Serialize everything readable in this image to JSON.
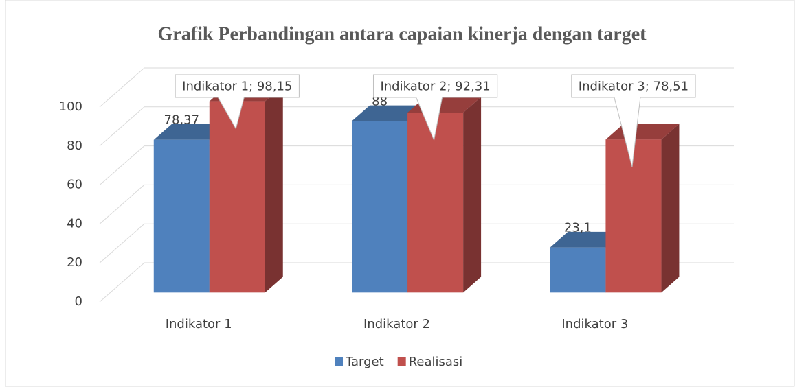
{
  "chart_data": {
    "type": "bar3d",
    "title": "Grafik Perbandingan antara capaian kinerja dengan target",
    "categories": [
      "Indikator 1",
      "Indikator 2",
      "Indikator 3"
    ],
    "series": [
      {
        "name": "Target",
        "color": "#4f81bd",
        "values": [
          78.37,
          88,
          23.1
        ],
        "value_labels": [
          "78,37",
          "88",
          "23,1"
        ]
      },
      {
        "name": "Realisasi",
        "color": "#c0504d",
        "values": [
          98.15,
          92.31,
          78.51
        ],
        "value_labels": [
          "Indikator 1; 98,15",
          "Indikator 2; 92,31",
          "Indikator 3; 78,51"
        ]
      }
    ],
    "ylim": [
      0,
      100
    ],
    "yticks": [
      0,
      20,
      40,
      60,
      80,
      100
    ],
    "grid": true,
    "legend": "bottom"
  }
}
